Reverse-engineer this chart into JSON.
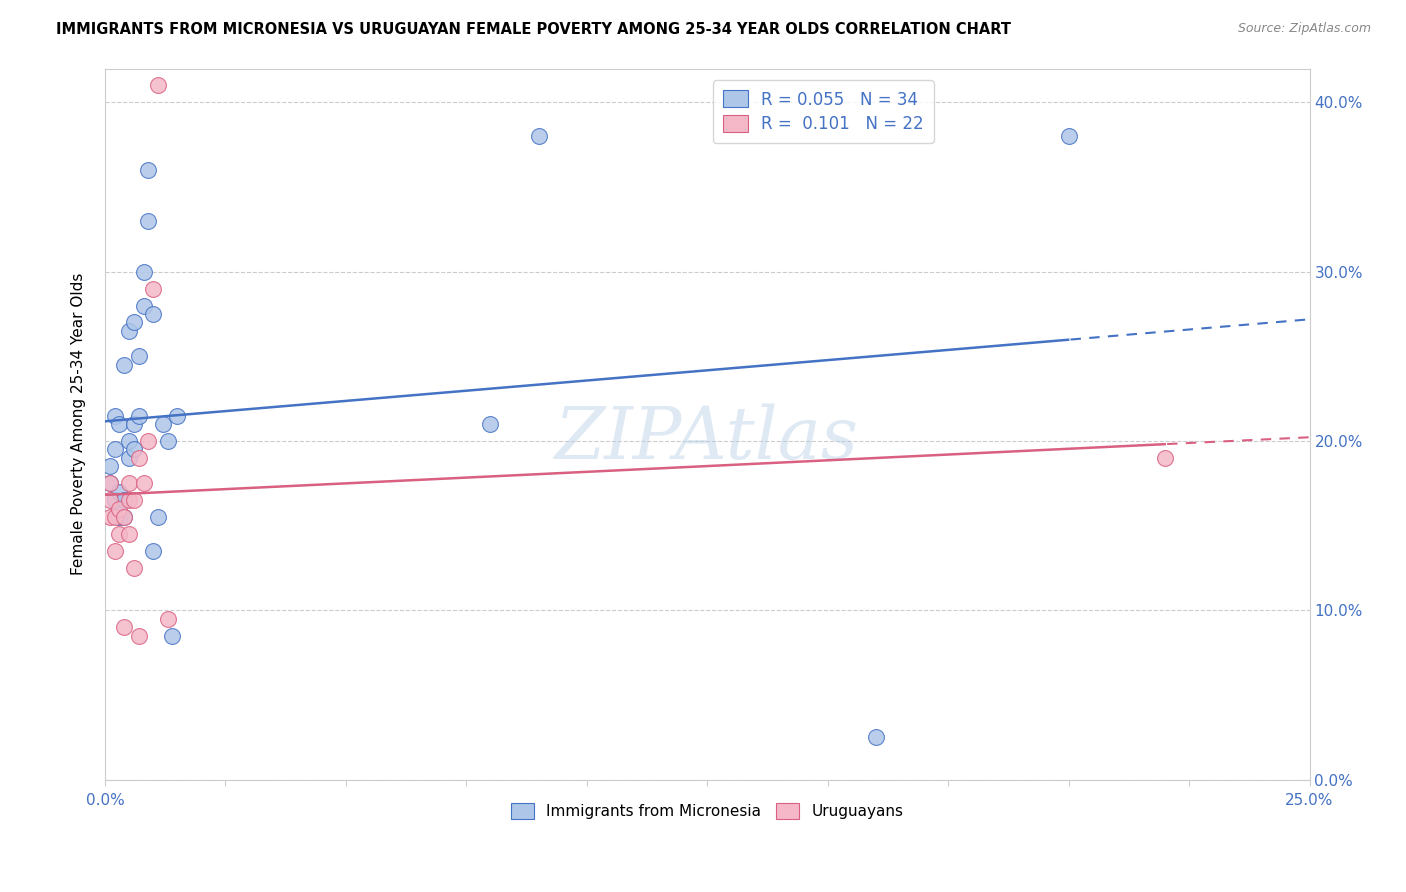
{
  "title": "IMMIGRANTS FROM MICRONESIA VS URUGUAYAN FEMALE POVERTY AMONG 25-34 YEAR OLDS CORRELATION CHART",
  "source": "Source: ZipAtlas.com",
  "ylabel": "Female Poverty Among 25-34 Year Olds",
  "xlim": [
    0.0,
    0.25
  ],
  "ylim": [
    0.0,
    0.42
  ],
  "xticks": [
    0.0,
    0.025,
    0.05,
    0.075,
    0.1,
    0.125,
    0.15,
    0.175,
    0.2,
    0.225,
    0.25
  ],
  "xtick_labels_show": [
    true,
    false,
    false,
    false,
    false,
    false,
    false,
    false,
    false,
    false,
    true
  ],
  "xtick_labels": [
    "0.0%",
    "",
    "",
    "",
    "",
    "",
    "",
    "",
    "",
    "",
    "25.0%"
  ],
  "yticks": [
    0.0,
    0.1,
    0.2,
    0.3,
    0.4
  ],
  "ytick_labels": [
    "0.0%",
    "10.0%",
    "20.0%",
    "30.0%",
    "40.0%"
  ],
  "legend1_label": "R = 0.055   N = 34",
  "legend2_label": "R =  0.101   N = 22",
  "series1_color": "#aec6e8",
  "series2_color": "#f4b8c8",
  "line1_color": "#4472c4",
  "line2_color": "#d96080",
  "watermark": "ZIPAtlas",
  "legend_label1": "Immigrants from Micronesia",
  "legend_label2": "Uruguayans",
  "micronesia_x": [
    0.001,
    0.001,
    0.002,
    0.002,
    0.002,
    0.003,
    0.003,
    0.003,
    0.004,
    0.004,
    0.004,
    0.005,
    0.005,
    0.005,
    0.006,
    0.006,
    0.006,
    0.007,
    0.007,
    0.008,
    0.008,
    0.009,
    0.009,
    0.01,
    0.01,
    0.011,
    0.012,
    0.013,
    0.014,
    0.015,
    0.08,
    0.16,
    0.09,
    0.2
  ],
  "micronesia_y": [
    0.175,
    0.185,
    0.165,
    0.195,
    0.215,
    0.155,
    0.17,
    0.21,
    0.155,
    0.165,
    0.245,
    0.19,
    0.2,
    0.265,
    0.195,
    0.21,
    0.27,
    0.215,
    0.25,
    0.28,
    0.3,
    0.33,
    0.36,
    0.275,
    0.135,
    0.155,
    0.21,
    0.2,
    0.085,
    0.215,
    0.21,
    0.025,
    0.38,
    0.38
  ],
  "uruguayan_x": [
    0.001,
    0.001,
    0.001,
    0.002,
    0.002,
    0.003,
    0.003,
    0.004,
    0.004,
    0.005,
    0.005,
    0.005,
    0.006,
    0.006,
    0.007,
    0.007,
    0.008,
    0.009,
    0.01,
    0.011,
    0.013,
    0.22
  ],
  "uruguayan_y": [
    0.155,
    0.165,
    0.175,
    0.135,
    0.155,
    0.145,
    0.16,
    0.09,
    0.155,
    0.145,
    0.165,
    0.175,
    0.125,
    0.165,
    0.19,
    0.085,
    0.175,
    0.2,
    0.29,
    0.41,
    0.095,
    0.19
  ]
}
